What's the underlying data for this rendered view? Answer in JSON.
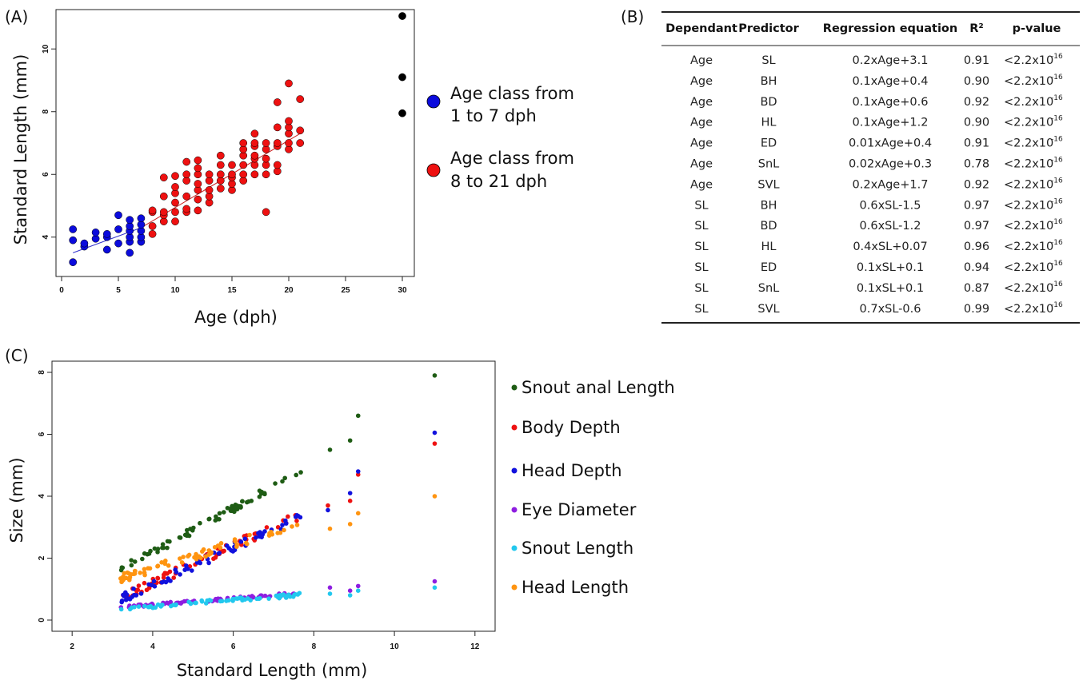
{
  "panel_labels": {
    "a": "(A)",
    "b": "(B)",
    "c": "(C)"
  },
  "chart_data": [
    {
      "type": "scatter",
      "panel": "(A)",
      "xlabel": "Age (dph)",
      "ylabel": "Standard Length (mm)",
      "xlim": [
        0,
        30
      ],
      "ylim": [
        3.0,
        11.0
      ],
      "xticks": [
        0,
        5,
        10,
        15,
        20,
        25,
        30
      ],
      "yticks": [
        4,
        6,
        8,
        10
      ],
      "grid": false,
      "legend_position": "right",
      "series": [
        {
          "name": "Age class from 1 to 7 dph",
          "legend_lines": [
            "Age class from",
            "1 to 7 dph"
          ],
          "color": "#0b0bdc",
          "points": [
            [
              1,
              3.2
            ],
            [
              1,
              3.9
            ],
            [
              1,
              4.25
            ],
            [
              2,
              3.7
            ],
            [
              2,
              3.8
            ],
            [
              3,
              3.95
            ],
            [
              3,
              4.15
            ],
            [
              4,
              3.6
            ],
            [
              4,
              4.0
            ],
            [
              4,
              4.1
            ],
            [
              5,
              3.8
            ],
            [
              5,
              4.25
            ],
            [
              5,
              4.7
            ],
            [
              6,
              3.5
            ],
            [
              6,
              3.85
            ],
            [
              6,
              4.0
            ],
            [
              6,
              4.2
            ],
            [
              6,
              4.35
            ],
            [
              6,
              4.55
            ],
            [
              7,
              3.85
            ],
            [
              7,
              4.0
            ],
            [
              7,
              4.2
            ],
            [
              7,
              4.4
            ],
            [
              7,
              4.6
            ]
          ]
        },
        {
          "name": "Age class from 8 to 21 dph",
          "legend_lines": [
            "Age class from",
            "8 to 21 dph"
          ],
          "color": "#ee1111",
          "points": [
            [
              8,
              4.1
            ],
            [
              8,
              4.35
            ],
            [
              8,
              4.8
            ],
            [
              8,
              4.85
            ],
            [
              9,
              4.5
            ],
            [
              9,
              4.7
            ],
            [
              9,
              4.8
            ],
            [
              9,
              5.3
            ],
            [
              9,
              5.9
            ],
            [
              10,
              4.5
            ],
            [
              10,
              4.8
            ],
            [
              10,
              5.1
            ],
            [
              10,
              5.4
            ],
            [
              10,
              5.6
            ],
            [
              10,
              5.95
            ],
            [
              11,
              4.8
            ],
            [
              11,
              4.9
            ],
            [
              11,
              5.3
            ],
            [
              11,
              5.8
            ],
            [
              11,
              6.0
            ],
            [
              11,
              6.4
            ],
            [
              12,
              4.85
            ],
            [
              12,
              5.2
            ],
            [
              12,
              5.5
            ],
            [
              12,
              5.7
            ],
            [
              12,
              6.0
            ],
            [
              12,
              6.2
            ],
            [
              12,
              6.45
            ],
            [
              13,
              5.1
            ],
            [
              13,
              5.3
            ],
            [
              13,
              5.5
            ],
            [
              13,
              5.8
            ],
            [
              13,
              6.0
            ],
            [
              14,
              5.55
            ],
            [
              14,
              5.8
            ],
            [
              14,
              6.0
            ],
            [
              14,
              6.3
            ],
            [
              14,
              6.6
            ],
            [
              15,
              5.5
            ],
            [
              15,
              5.7
            ],
            [
              15,
              5.9
            ],
            [
              15,
              6.0
            ],
            [
              15,
              6.3
            ],
            [
              16,
              5.8
            ],
            [
              16,
              6.0
            ],
            [
              16,
              6.3
            ],
            [
              16,
              6.6
            ],
            [
              16,
              6.8
            ],
            [
              16,
              7.0
            ],
            [
              17,
              6.0
            ],
            [
              17,
              6.3
            ],
            [
              17,
              6.5
            ],
            [
              17,
              6.6
            ],
            [
              17,
              6.9
            ],
            [
              17,
              7.0
            ],
            [
              17,
              7.3
            ],
            [
              18,
              4.8
            ],
            [
              18,
              6.0
            ],
            [
              18,
              6.3
            ],
            [
              18,
              6.5
            ],
            [
              18,
              6.8
            ],
            [
              18,
              7.0
            ],
            [
              19,
              6.1
            ],
            [
              19,
              6.3
            ],
            [
              19,
              6.9
            ],
            [
              19,
              7.0
            ],
            [
              19,
              7.5
            ],
            [
              19,
              8.3
            ],
            [
              20,
              6.8
            ],
            [
              20,
              7.0
            ],
            [
              20,
              7.3
            ],
            [
              20,
              7.5
            ],
            [
              20,
              7.7
            ],
            [
              20,
              8.9
            ],
            [
              21,
              7.0
            ],
            [
              21,
              7.4
            ],
            [
              21,
              8.4
            ]
          ]
        },
        {
          "name": "",
          "color": "#000000",
          "points": [
            [
              30,
              7.95
            ],
            [
              30,
              9.1
            ],
            [
              30,
              11.05
            ]
          ]
        }
      ],
      "trend_lines": [
        {
          "color": "#3333cc",
          "from": [
            1,
            3.5
          ],
          "to": [
            7,
            4.3
          ]
        },
        {
          "color": "#cc2222",
          "from": [
            7,
            4.3
          ],
          "to": [
            21,
            7.3
          ]
        }
      ]
    },
    {
      "type": "table",
      "panel": "(B)",
      "columns": [
        "Dependant",
        "Predictor",
        "Regression equation",
        "R²",
        "p-value"
      ],
      "p_value_base": "<2.2x10",
      "p_value_exponent": "-16",
      "rows": [
        [
          "Age",
          "SL",
          "0.2xAge+3.1",
          "0.91"
        ],
        [
          "Age",
          "BH",
          "0.1xAge+0.4",
          "0.90"
        ],
        [
          "Age",
          "BD",
          "0.1xAge+0.6",
          "0.92"
        ],
        [
          "Age",
          "HL",
          "0.1xAge+1.2",
          "0.90"
        ],
        [
          "Age",
          "ED",
          "0.01xAge+0.4",
          "0.91"
        ],
        [
          "Age",
          "SnL",
          "0.02xAge+0.3",
          "0.78"
        ],
        [
          "Age",
          "SVL",
          "0.2xAge+1.7",
          "0.92"
        ],
        [
          "SL",
          "BH",
          "0.6xSL-1.5",
          "0.97"
        ],
        [
          "SL",
          "BD",
          "0.6xSL-1.2",
          "0.97"
        ],
        [
          "SL",
          "HL",
          "0.4xSL+0.07",
          "0.96"
        ],
        [
          "SL",
          "ED",
          "0.1xSL+0.1",
          "0.94"
        ],
        [
          "SL",
          "SnL",
          "0.1xSL+0.1",
          "0.87"
        ],
        [
          "SL",
          "SVL",
          "0.7xSL-0.6",
          "0.99"
        ]
      ]
    },
    {
      "type": "scatter",
      "panel": "(C)",
      "xlabel": "Standard Length (mm)",
      "ylabel": "Size (mm)",
      "xlim": [
        1.5,
        12.5
      ],
      "ylim": [
        0,
        8.0
      ],
      "xticks": [
        2,
        4,
        6,
        8,
        10,
        12
      ],
      "yticks": [
        0,
        2,
        4,
        6,
        8
      ],
      "grid": false,
      "legend_position": "right",
      "series": [
        {
          "name": "Snout anal Length",
          "color": "#1e5c14",
          "slope": 0.7,
          "intercept": -0.6,
          "spread": 0.12,
          "extra": [
            [
              8.4,
              5.5
            ],
            [
              8.9,
              5.8
            ],
            [
              9.1,
              6.6
            ],
            [
              11.0,
              7.9
            ]
          ]
        },
        {
          "name": "Body Depth",
          "color": "#ee1111",
          "slope": 0.6,
          "intercept": -1.2,
          "spread": 0.15,
          "extra": [
            [
              8.35,
              3.7
            ],
            [
              8.9,
              3.85
            ],
            [
              9.1,
              4.7
            ],
            [
              11.0,
              5.7
            ]
          ]
        },
        {
          "name": "Head Depth",
          "color": "#1111dd",
          "slope": 0.6,
          "intercept": -1.25,
          "spread": 0.15,
          "extra": [
            [
              8.35,
              3.55
            ],
            [
              8.9,
              4.1
            ],
            [
              9.1,
              4.8
            ],
            [
              11.0,
              6.05
            ]
          ]
        },
        {
          "name": "Eye Diameter",
          "color": "#8e1ee0",
          "slope": 0.1,
          "intercept": 0.1,
          "spread": 0.04,
          "extra": [
            [
              8.4,
              1.05
            ],
            [
              8.9,
              0.95
            ],
            [
              9.1,
              1.1
            ],
            [
              11.0,
              1.25
            ]
          ]
        },
        {
          "name": "Snout Length",
          "color": "#22c8ee",
          "slope": 0.1,
          "intercept": 0.05,
          "spread": 0.06,
          "extra": [
            [
              8.4,
              0.85
            ],
            [
              8.9,
              0.8
            ],
            [
              9.1,
              0.95
            ],
            [
              11.0,
              1.05
            ]
          ]
        },
        {
          "name": "Head Length",
          "color": "#ff9410",
          "slope": 0.4,
          "intercept": 0.07,
          "spread": 0.15,
          "extra": [
            [
              8.4,
              2.95
            ],
            [
              8.9,
              3.1
            ],
            [
              9.1,
              3.45
            ],
            [
              11.0,
              4.0
            ]
          ]
        }
      ],
      "x_range_main": [
        3.2,
        7.7
      ]
    }
  ]
}
